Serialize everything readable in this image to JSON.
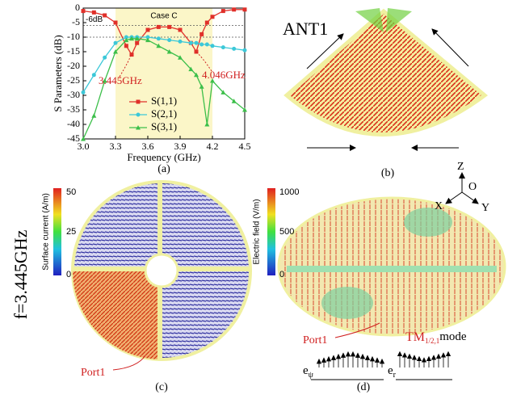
{
  "chart_data": {
    "type": "line",
    "xlabel": "Frequency (GHz)",
    "ylabel": "S Parameters (dB)",
    "x": [
      3.0,
      3.1,
      3.2,
      3.3,
      3.4,
      3.45,
      3.5,
      3.6,
      3.7,
      3.8,
      3.9,
      4.0,
      4.05,
      4.1,
      4.15,
      4.2,
      4.3,
      4.4,
      4.5
    ],
    "series": [
      {
        "name": "S(1,1)",
        "color": "#e0302a",
        "marker": "square",
        "values": [
          -1,
          -1.5,
          -2.5,
          -5,
          -13,
          -16,
          -12,
          -7.5,
          -6.5,
          -6.5,
          -7.5,
          -12,
          -15,
          -9,
          -5,
          -3,
          -1,
          -0.5,
          -0.5
        ]
      },
      {
        "name": "S(2,1)",
        "color": "#3cc8d8",
        "marker": "circle",
        "values": [
          -29,
          -23,
          -17,
          -12,
          -10,
          -10,
          -10,
          -10,
          -10.5,
          -11,
          -11.5,
          -12,
          -12,
          -12.5,
          -12.5,
          -13,
          -13.5,
          -14,
          -14.5
        ]
      },
      {
        "name": "S(3,1)",
        "color": "#3cbf4a",
        "marker": "triangle",
        "values": [
          -45,
          -37,
          -25,
          -15,
          -11,
          -10.5,
          -10.5,
          -11,
          -13,
          -15,
          -17,
          -21,
          -23,
          -27,
          -40,
          -25,
          -29,
          -32,
          -35
        ]
      }
    ],
    "xlim": [
      3.0,
      4.5
    ],
    "xticks": [
      {
        "value": 3.0,
        "label": "3.0"
      },
      {
        "value": 3.3,
        "label": "3.3"
      },
      {
        "value": 3.6,
        "label": "3.6"
      },
      {
        "value": 3.9,
        "label": "3.9"
      },
      {
        "value": 4.2,
        "label": "4.2"
      },
      {
        "value": 4.5,
        "label": "4.5"
      }
    ],
    "ylim": [
      -45,
      0
    ],
    "yticks": [
      0,
      -5,
      -10,
      -15,
      -20,
      -25,
      -30,
      -35,
      -40,
      -45
    ],
    "band": [
      3.3,
      4.2
    ],
    "band_label": "Case C",
    "ref_lines": [
      {
        "value": -6,
        "label": "-6dB"
      },
      {
        "value": -10
      }
    ],
    "annotations": [
      "3.445GHz",
      "4.046GHz"
    ],
    "legend": "lower center",
    "caption": "(a)"
  },
  "panel_b": {
    "label": "ANT1",
    "caption": "(b)"
  },
  "panel_c": {
    "frequency": "f=3.445GHz",
    "colorbar_title": "Surface current (A/m)",
    "colorbar_ticks": [
      "50",
      "25",
      "0"
    ],
    "port": "Port1",
    "caption": "(c)"
  },
  "panel_d": {
    "colorbar_title": "Electric field (V/m)",
    "colorbar_ticks": [
      "1000",
      "500",
      "0"
    ],
    "axes": [
      "Z",
      "O",
      "X",
      "Y"
    ],
    "port": "Port1",
    "mode": "TM",
    "mode_sub": "1/2,1",
    "mode_suffix": "mode",
    "e1": "e",
    "e1_sub": "ψ",
    "e2": "e",
    "e2_sub": "r",
    "caption": "(d)"
  }
}
